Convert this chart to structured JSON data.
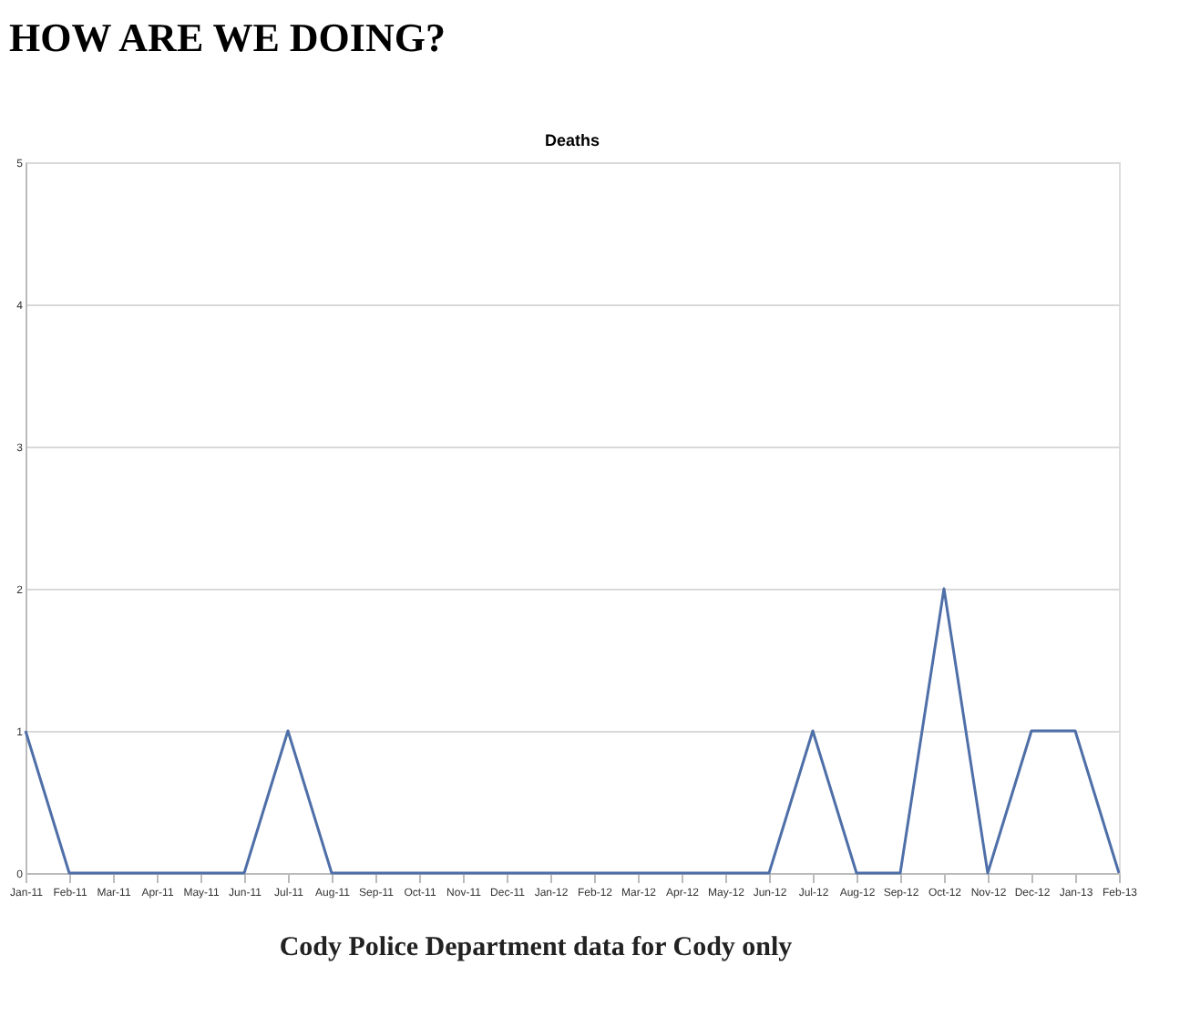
{
  "chart_data": {
    "type": "line",
    "title": "HOW ARE WE DOING?",
    "subtitle": "Deaths",
    "categories": [
      "Jan-11",
      "Feb-11",
      "Mar-11",
      "Apr-11",
      "May-11",
      "Jun-11",
      "Jul-11",
      "Aug-11",
      "Sep-11",
      "Oct-11",
      "Nov-11",
      "Dec-11",
      "Jan-12",
      "Feb-12",
      "Mar-12",
      "Apr-12",
      "May-12",
      "Jun-12",
      "Jul-12",
      "Aug-12",
      "Sep-12",
      "Oct-12",
      "Nov-12",
      "Dec-12",
      "Jan-13",
      "Feb-13"
    ],
    "series": [
      {
        "color": "#4f6fa8",
        "values": [
          1,
          0,
          0,
          0,
          0,
          0,
          1,
          0,
          0,
          0,
          0,
          0,
          0,
          0,
          0,
          0,
          0,
          0,
          1,
          0,
          0,
          2,
          0,
          1,
          1,
          0
        ]
      }
    ],
    "ylim": [
      0,
      5
    ],
    "yticks": [
      0,
      1,
      2,
      3,
      4,
      5
    ],
    "grid": "y",
    "marker": "none",
    "line_style": "solid",
    "annotations": [
      "Cody Police Department data for Cody only"
    ]
  }
}
